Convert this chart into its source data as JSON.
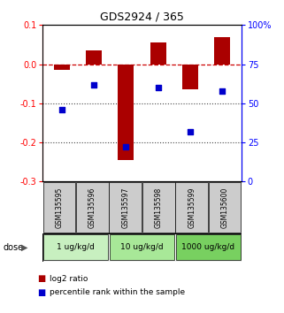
{
  "title": "GDS2924 / 365",
  "samples": [
    "GSM135595",
    "GSM135596",
    "GSM135597",
    "GSM135598",
    "GSM135599",
    "GSM135600"
  ],
  "log2_ratio": [
    -0.015,
    0.035,
    -0.245,
    0.055,
    -0.065,
    0.07
  ],
  "percentile_rank": [
    46,
    62,
    22,
    60,
    32,
    58
  ],
  "dose_groups": [
    {
      "label": "1 ug/kg/d",
      "samples": [
        0,
        1
      ],
      "color": "#c8f0c0"
    },
    {
      "label": "10 ug/kg/d",
      "samples": [
        2,
        3
      ],
      "color": "#a8e898"
    },
    {
      "label": "1000 ug/kg/d",
      "samples": [
        4,
        5
      ],
      "color": "#78d060"
    }
  ],
  "bar_color": "#aa0000",
  "dot_color": "#0000cc",
  "left_ylim": [
    -0.3,
    0.1
  ],
  "left_yticks": [
    0.1,
    0.0,
    -0.1,
    -0.2,
    -0.3
  ],
  "right_ylim": [
    0,
    100
  ],
  "right_yticks": [
    0,
    25,
    50,
    75,
    100
  ],
  "hline_zero_color": "#cc0000",
  "hline_dotted_color": "#444444",
  "bar_width": 0.5,
  "background_color": "#ffffff",
  "sample_box_color": "#cccccc",
  "dose_label": "dose",
  "legend_red_label": "log2 ratio",
  "legend_blue_label": "percentile rank within the sample"
}
